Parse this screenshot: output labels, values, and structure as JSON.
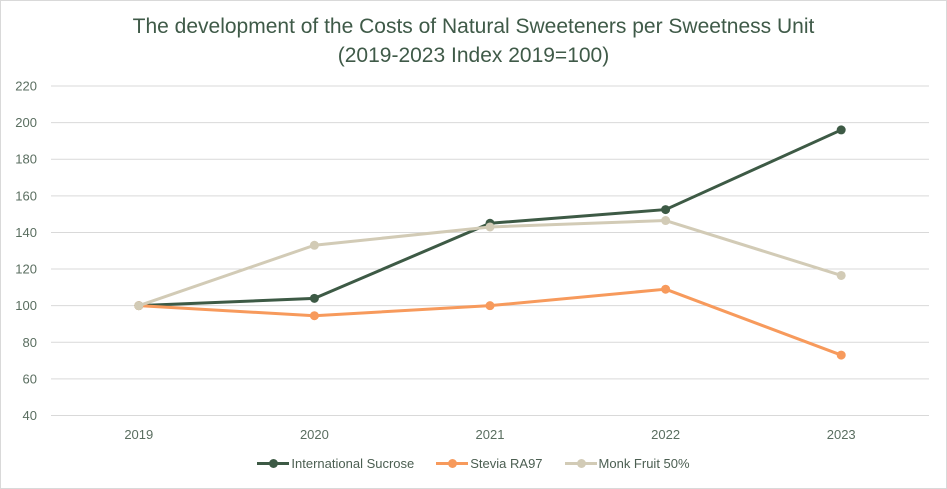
{
  "chart_data": {
    "type": "line",
    "title": "The development of the Costs of Natural Sweeteners per Sweetness Unit",
    "subtitle": "(2019-2023 Index 2019=100)",
    "xlabel": "",
    "ylabel": "",
    "categories": [
      "2019",
      "2020",
      "2021",
      "2022",
      "2023"
    ],
    "ylim": [
      40,
      220
    ],
    "yticks": [
      40,
      60,
      80,
      100,
      120,
      140,
      160,
      180,
      200,
      220
    ],
    "grid": true,
    "legend_position": "bottom",
    "series": [
      {
        "name": "International Sucrose",
        "color": "#3d5a45",
        "values": [
          100,
          104,
          145,
          152.5,
          196
        ]
      },
      {
        "name": "Stevia RA97",
        "color": "#f79a5c",
        "values": [
          100,
          94.5,
          100,
          109,
          73
        ]
      },
      {
        "name": "Monk Fruit 50%",
        "color": "#d2cbb6",
        "values": [
          100,
          133,
          143,
          146.5,
          116.5
        ]
      }
    ]
  }
}
